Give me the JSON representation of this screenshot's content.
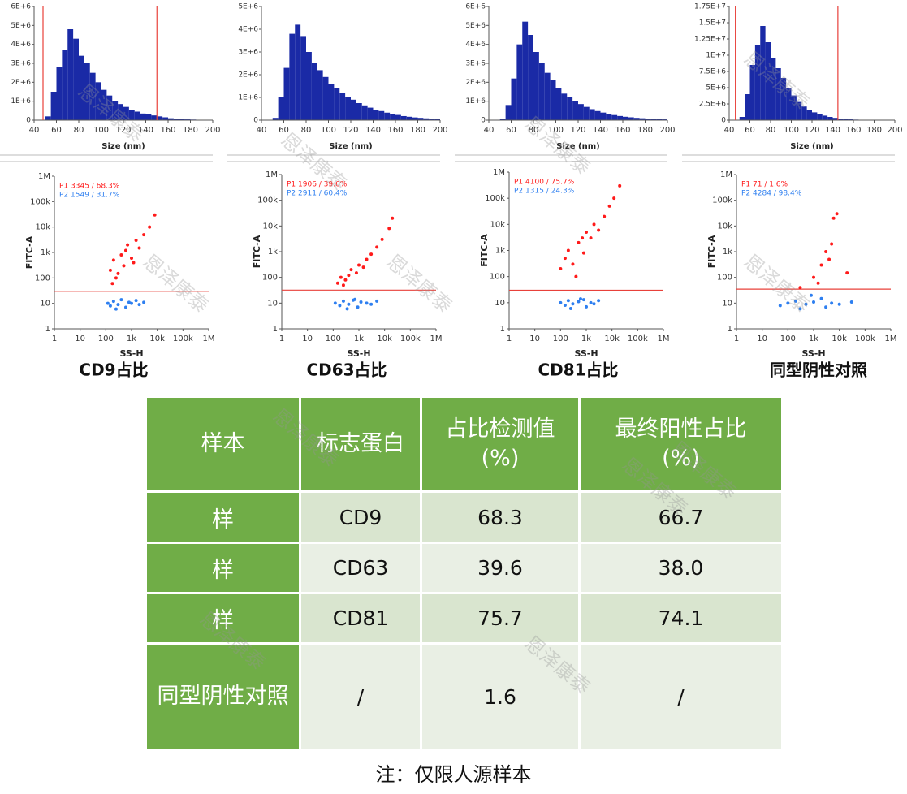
{
  "chart_data": [
    {
      "type": "histogram",
      "xlabel": "Size (nm)",
      "color": "#1a2aa6",
      "bins": [
        40,
        45,
        50,
        55,
        60,
        65,
        70,
        75,
        80,
        85,
        90,
        95,
        100,
        105,
        110,
        115,
        120,
        125,
        130,
        135,
        140,
        145,
        150,
        155,
        160,
        165,
        170,
        175,
        180,
        185,
        190,
        195,
        200
      ],
      "values": [
        0,
        0,
        200000,
        1500000,
        2800000,
        3700000,
        4800000,
        4300000,
        3400000,
        3000000,
        2500000,
        2000000,
        1600000,
        1300000,
        1000000,
        850000,
        700000,
        550000,
        450000,
        350000,
        300000,
        250000,
        200000,
        150000,
        100000,
        80000,
        50000,
        40000,
        30000,
        20000,
        10000,
        10000
      ],
      "xlim": [
        40,
        200
      ],
      "xticks": [
        40,
        60,
        80,
        100,
        120,
        140,
        160,
        180,
        200
      ],
      "ylim": [
        0,
        6000000
      ],
      "yticks": [
        0,
        {
          "value": 1000000,
          "label": "1E+6"
        },
        {
          "value": 2000000,
          "label": "2E+6"
        },
        {
          "value": 3000000,
          "label": "3E+6"
        },
        {
          "value": 4000000,
          "label": "4E+6"
        },
        {
          "value": 5000000,
          "label": "5E+6"
        },
        {
          "value": 6000000,
          "label": "6E+6"
        }
      ],
      "gates": [
        48,
        150
      ],
      "gate_color": "#e8413a"
    },
    {
      "type": "histogram",
      "xlabel": "Size (nm)",
      "color": "#1a2aa6",
      "bins": [
        40,
        45,
        50,
        55,
        60,
        65,
        70,
        75,
        80,
        85,
        90,
        95,
        100,
        105,
        110,
        115,
        120,
        125,
        130,
        135,
        140,
        145,
        150,
        155,
        160,
        165,
        170,
        175,
        180,
        185,
        190,
        195,
        200
      ],
      "values": [
        0,
        0,
        100000,
        1000000,
        2300000,
        3800000,
        4200000,
        3700000,
        3000000,
        2500000,
        2200000,
        1900000,
        1600000,
        1400000,
        1200000,
        1000000,
        900000,
        750000,
        650000,
        550000,
        450000,
        400000,
        330000,
        280000,
        230000,
        180000,
        150000,
        120000,
        100000,
        80000,
        60000,
        50000
      ],
      "xlim": [
        40,
        200
      ],
      "xticks": [
        40,
        60,
        80,
        100,
        120,
        140,
        160,
        180,
        200
      ],
      "ylim": [
        0,
        5000000
      ],
      "yticks": [
        0,
        {
          "value": 1000000,
          "label": "1E+6"
        },
        {
          "value": 2000000,
          "label": "2E+6"
        },
        {
          "value": 3000000,
          "label": "3E+6"
        },
        {
          "value": 4000000,
          "label": "4E+6"
        },
        {
          "value": 5000000,
          "label": "5E+6"
        }
      ]
    },
    {
      "type": "histogram",
      "xlabel": "Size (nm)",
      "color": "#1a2aa6",
      "bins": [
        40,
        45,
        50,
        55,
        60,
        65,
        70,
        75,
        80,
        85,
        90,
        95,
        100,
        105,
        110,
        115,
        120,
        125,
        130,
        135,
        140,
        145,
        150,
        155,
        160,
        165,
        170,
        175,
        180,
        185,
        190,
        195,
        200
      ],
      "values": [
        0,
        0,
        50000,
        800000,
        2200000,
        4000000,
        5200000,
        4500000,
        3600000,
        3000000,
        2500000,
        2100000,
        1700000,
        1400000,
        1200000,
        1000000,
        850000,
        700000,
        580000,
        480000,
        400000,
        330000,
        270000,
        220000,
        180000,
        150000,
        120000,
        100000,
        80000,
        60000,
        50000,
        40000
      ],
      "xlim": [
        40,
        200
      ],
      "xticks": [
        40,
        60,
        80,
        100,
        120,
        140,
        160,
        180,
        200
      ],
      "ylim": [
        0,
        6000000
      ],
      "yticks": [
        0,
        {
          "value": 1000000,
          "label": "1E+6"
        },
        {
          "value": 2000000,
          "label": "2E+6"
        },
        {
          "value": 3000000,
          "label": "3E+6"
        },
        {
          "value": 4000000,
          "label": "4E+6"
        },
        {
          "value": 5000000,
          "label": "5E+6"
        },
        {
          "value": 6000000,
          "label": "6E+6"
        }
      ]
    },
    {
      "type": "histogram",
      "xlabel": "Size (nm)",
      "color": "#1a2aa6",
      "bins": [
        40,
        45,
        50,
        55,
        60,
        65,
        70,
        75,
        80,
        85,
        90,
        95,
        100,
        105,
        110,
        115,
        120,
        125,
        130,
        135,
        140,
        145,
        150,
        155,
        160,
        165,
        170,
        175,
        180,
        185,
        190,
        195,
        200
      ],
      "values": [
        0,
        0,
        500000,
        4000000,
        8500000,
        11500000,
        14500000,
        12000000,
        9500000,
        8000000,
        6500000,
        5000000,
        3800000,
        2800000,
        2100000,
        1600000,
        1200000,
        900000,
        700000,
        500000,
        350000,
        250000,
        180000,
        120000,
        80000,
        50000,
        30000,
        20000,
        10000,
        10000,
        0,
        0
      ],
      "xlim": [
        40,
        200
      ],
      "xticks": [
        40,
        60,
        80,
        100,
        120,
        140,
        160,
        180,
        200
      ],
      "ylim": [
        0,
        17500000
      ],
      "yticks": [
        0,
        {
          "value": 2500000,
          "label": "2.5E+6"
        },
        {
          "value": 5000000,
          "label": "5E+6"
        },
        {
          "value": 7500000,
          "label": "7.5E+6"
        },
        {
          "value": 10000000,
          "label": "1E+7"
        },
        {
          "value": 12500000,
          "label": "1.25E+7"
        },
        {
          "value": 15000000,
          "label": "1.5E+7"
        },
        {
          "value": 17500000,
          "label": "1.75E+7"
        }
      ],
      "gates": [
        46,
        145
      ],
      "gate_color": "#e8413a"
    },
    {
      "type": "scatter",
      "xlabel": "SS-H",
      "ylabel": "FITC-A",
      "log_scale": true,
      "xlim": [
        1,
        1000000
      ],
      "ylim": [
        1,
        1000000
      ],
      "xticks": [
        1,
        10,
        100,
        {
          "value": 1000,
          "label": "1k"
        },
        {
          "value": 10000,
          "label": "10k"
        },
        {
          "value": 100000,
          "label": "100k"
        },
        {
          "value": 1000000,
          "label": "1M"
        }
      ],
      "yticks": [
        1,
        10,
        100,
        {
          "value": 1000,
          "label": "1k"
        },
        {
          "value": 10000,
          "label": "10k"
        },
        {
          "value": 100000,
          "label": "100k"
        },
        {
          "value": 1000000,
          "label": "1M"
        }
      ],
      "threshold": 30,
      "threshold_color": "#e8413a",
      "series": [
        {
          "name": "P1  3345 / 68.3%",
          "color": "#ff1a1a",
          "x": [
            150,
            200,
            300,
            400,
            500,
            700,
            1000,
            1500,
            2000,
            3000,
            5000,
            8000,
            250,
            600,
            1200,
            180
          ],
          "values": [
            200,
            500,
            150,
            800,
            300,
            2000,
            600,
            3000,
            1500,
            5000,
            10000,
            30000,
            100,
            1200,
            400,
            60
          ]
        },
        {
          "name": "P2  1549 / 31.7%",
          "color": "#2e7ff0",
          "x": [
            120,
            150,
            200,
            300,
            400,
            600,
            800,
            1000,
            1500,
            2000,
            3000,
            250
          ],
          "values": [
            10,
            8,
            12,
            9,
            14,
            7,
            11,
            10,
            13,
            9,
            11,
            6
          ]
        }
      ]
    },
    {
      "type": "scatter",
      "xlabel": "SS-H",
      "ylabel": "FITC-A",
      "log_scale": true,
      "xlim": [
        1,
        1000000
      ],
      "ylim": [
        1,
        1000000
      ],
      "xticks": [
        1,
        10,
        100,
        {
          "value": 1000,
          "label": "1k"
        },
        {
          "value": 10000,
          "label": "10k"
        },
        {
          "value": 100000,
          "label": "100k"
        },
        {
          "value": 1000000,
          "label": "1M"
        }
      ],
      "yticks": [
        1,
        10,
        100,
        {
          "value": 1000,
          "label": "1k"
        },
        {
          "value": 10000,
          "label": "10k"
        },
        {
          "value": 100000,
          "label": "100k"
        },
        {
          "value": 1000000,
          "label": "1M"
        }
      ],
      "threshold": 32,
      "threshold_color": "#e8413a",
      "series": [
        {
          "name": "P1  1906 / 39.6%",
          "color": "#ff1a1a",
          "x": [
            150,
            200,
            300,
            500,
            800,
            1000,
            1500,
            2000,
            3000,
            5000,
            8000,
            15000,
            20000,
            400,
            250
          ],
          "values": [
            60,
            100,
            80,
            200,
            150,
            300,
            250,
            500,
            800,
            1500,
            3000,
            8000,
            20000,
            120,
            50
          ]
        },
        {
          "name": "P2  2911 / 60.4%",
          "color": "#2e7ff0",
          "x": [
            120,
            180,
            250,
            400,
            600,
            900,
            1200,
            2000,
            3000,
            5000,
            350,
            700
          ],
          "values": [
            10,
            8,
            12,
            9,
            13,
            7,
            11,
            10,
            9,
            12,
            6,
            14
          ]
        }
      ]
    },
    {
      "type": "scatter",
      "xlabel": "SS-H",
      "ylabel": "FITC-A",
      "log_scale": true,
      "xlim": [
        1,
        1000000
      ],
      "ylim": [
        1,
        1000000
      ],
      "xticks": [
        1,
        10,
        100,
        {
          "value": 1000,
          "label": "1k"
        },
        {
          "value": 10000,
          "label": "10k"
        },
        {
          "value": 100000,
          "label": "100k"
        },
        {
          "value": 1000000,
          "label": "1M"
        }
      ],
      "yticks": [
        1,
        10,
        100,
        {
          "value": 1000,
          "label": "1k"
        },
        {
          "value": 10000,
          "label": "10k"
        },
        {
          "value": 100000,
          "label": "100k"
        },
        {
          "value": 1000000,
          "label": "1M"
        }
      ],
      "threshold": 30,
      "threshold_color": "#e8413a",
      "series": [
        {
          "name": "P1  4100 / 75.7%",
          "color": "#ff1a1a",
          "x": [
            100,
            150,
            200,
            300,
            500,
            800,
            1000,
            1500,
            2000,
            3000,
            5000,
            8000,
            12000,
            20000,
            400,
            700
          ],
          "values": [
            200,
            500,
            1000,
            300,
            2000,
            800,
            5000,
            3000,
            10000,
            6000,
            20000,
            50000,
            100000,
            300000,
            100,
            3000
          ]
        },
        {
          "name": "P2  1315 / 24.3%",
          "color": "#2e7ff0",
          "x": [
            100,
            150,
            200,
            300,
            500,
            800,
            1000,
            1500,
            2000,
            3000,
            250,
            600
          ],
          "values": [
            10,
            8,
            12,
            9,
            11,
            13,
            7,
            10,
            9,
            12,
            6,
            14
          ]
        }
      ]
    },
    {
      "type": "scatter",
      "xlabel": "SS-H",
      "ylabel": "FITC-A",
      "log_scale": true,
      "xlim": [
        1,
        1000000
      ],
      "ylim": [
        1,
        1000000
      ],
      "xticks": [
        1,
        10,
        100,
        {
          "value": 1000,
          "label": "1k"
        },
        {
          "value": 10000,
          "label": "10k"
        },
        {
          "value": 100000,
          "label": "100k"
        },
        {
          "value": 1000000,
          "label": "1M"
        }
      ],
      "yticks": [
        1,
        10,
        100,
        {
          "value": 1000,
          "label": "1k"
        },
        {
          "value": 10000,
          "label": "10k"
        },
        {
          "value": 100000,
          "label": "100k"
        },
        {
          "value": 1000000,
          "label": "1M"
        }
      ],
      "threshold": 35,
      "threshold_color": "#e8413a",
      "series": [
        {
          "name": "P1  71 / 1.6%",
          "color": "#ff1a1a",
          "x": [
            1000,
            2000,
            3000,
            5000,
            6000,
            8000,
            20000,
            1500,
            4000,
            300
          ],
          "values": [
            100,
            300,
            1000,
            2000,
            20000,
            30000,
            150,
            60,
            500,
            40
          ]
        },
        {
          "name": "P2  4284 / 98.4%",
          "color": "#2e7ff0",
          "x": [
            50,
            100,
            200,
            500,
            1000,
            2000,
            5000,
            10000,
            30000,
            800,
            3000,
            300
          ],
          "values": [
            8,
            10,
            12,
            9,
            11,
            15,
            10,
            9,
            11,
            20,
            7,
            6
          ]
        }
      ]
    }
  ],
  "captions": [
    "CD9占比",
    "CD63占比",
    "CD81占比",
    "同型阴性对照"
  ],
  "watermark": "恩泽康泰",
  "table": {
    "header": [
      [
        "样本"
      ],
      [
        "标志蛋白"
      ],
      [
        "占比检测值",
        "(%)"
      ],
      [
        "最终阳性占比",
        "(%)"
      ]
    ],
    "rows": [
      [
        "样",
        "CD9",
        "68.3",
        "66.7"
      ],
      [
        "样",
        "CD63",
        "39.6",
        "38.0"
      ],
      [
        "样",
        "CD81",
        "75.7",
        "74.1"
      ],
      [
        "同型阴性对照",
        "/",
        "1.6",
        "/"
      ]
    ]
  },
  "footnote": "注：仅限人源样本"
}
